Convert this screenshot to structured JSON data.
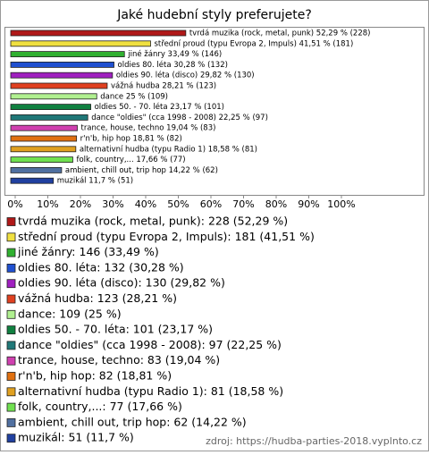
{
  "chart_data": {
    "type": "bar",
    "orientation": "horizontal",
    "title": "Jaké hudební styly preferujete?",
    "categories": [
      "tvrdá muzika (rock, metal, punk)",
      "střední proud (typu Evropa 2, Impuls)",
      "jiné žánry",
      "oldies 80. léta",
      "oldies 90. léta (disco)",
      "vážná hudba",
      "dance",
      "oldies 50. - 70. léta",
      "dance \"oldies\" (cca 1998 - 2008)",
      "trance, house, techno",
      "r'n'b, hip hop",
      "alternativní hudba (typu Radio 1)",
      "folk, country,...",
      "ambient, chill out, trip hop",
      "muzikál"
    ],
    "values": [
      52.29,
      41.51,
      33.49,
      30.28,
      29.82,
      28.21,
      25,
      23.17,
      22.25,
      19.04,
      18.81,
      18.58,
      17.66,
      14.22,
      11.7
    ],
    "value_labels": [
      "tvrdá muzika (rock, metal, punk) 52,29 % (228)",
      "střední proud (typu Evropa 2, Impuls) 41,51 % (181)",
      "jiné žánry 33,49 % (146)",
      "oldies 80. léta 30,28 % (132)",
      "oldies 90. léta (disco) 29,82 % (130)",
      "vážná hudba 28,21 % (123)",
      "dance 25 % (109)",
      "oldies 50. - 70. léta 23,17 % (101)",
      "dance \"oldies\" (cca 1998 - 2008) 22,25 % (97)",
      "trance, house, techno 19,04 % (83)",
      "r'n'b, hip hop 18,81 % (82)",
      "alternativní hudba (typu Radio 1) 18,58 % (81)",
      "folk, country,... 17,66 % (77)",
      "ambient, chill out, trip hop 14,22 % (62)",
      "muzikál 11,7 % (51)"
    ],
    "legend_labels": [
      "tvrdá muzika (rock, metal, punk): 228 (52,29 %)",
      "střední proud (typu Evropa 2, Impuls): 181 (41,51 %)",
      "jiné žánry: 146 (33,49 %)",
      "oldies 80. léta: 132 (30,28 %)",
      "oldies 90. léta (disco): 130 (29,82 %)",
      "vážná hudba: 123 (28,21 %)",
      "dance: 109 (25 %)",
      "oldies 50. - 70. léta: 101 (23,17 %)",
      "dance \"oldies\" (cca 1998 - 2008): 97 (22,25 %)",
      "trance, house, techno: 83 (19,04 %)",
      "r'n'b, hip hop: 82 (18,81 %)",
      "alternativní hudba (typu Radio 1): 81 (18,58 %)",
      "folk, country,...: 77 (17,66 %)",
      "ambient, chill out, trip hop: 62 (14,22 %)",
      "muzikál: 51 (11,7 %)"
    ],
    "colors": [
      "#b01818",
      "#f0e040",
      "#30b030",
      "#2050d0",
      "#a020c0",
      "#e04020",
      "#b0f090",
      "#108040",
      "#207878",
      "#d040b0",
      "#e07010",
      "#e0a020",
      "#70e050",
      "#5070a0",
      "#2040a0"
    ],
    "xlim": [
      0,
      100
    ],
    "xticks": [
      {
        "value": 0,
        "label": "0%"
      },
      {
        "value": 10,
        "label": "10%"
      },
      {
        "value": 20,
        "label": "20%"
      },
      {
        "value": 30,
        "label": "30%"
      },
      {
        "value": 40,
        "label": "40%"
      },
      {
        "value": 50,
        "label": "50%"
      },
      {
        "value": 60,
        "label": "60%"
      },
      {
        "value": 70,
        "label": "70%"
      },
      {
        "value": 80,
        "label": "80%"
      },
      {
        "value": 90,
        "label": "90%"
      },
      {
        "value": 100,
        "label": "100%"
      }
    ],
    "source": "zdroj: https://hudba-parties-2018.vyplnto.cz"
  }
}
